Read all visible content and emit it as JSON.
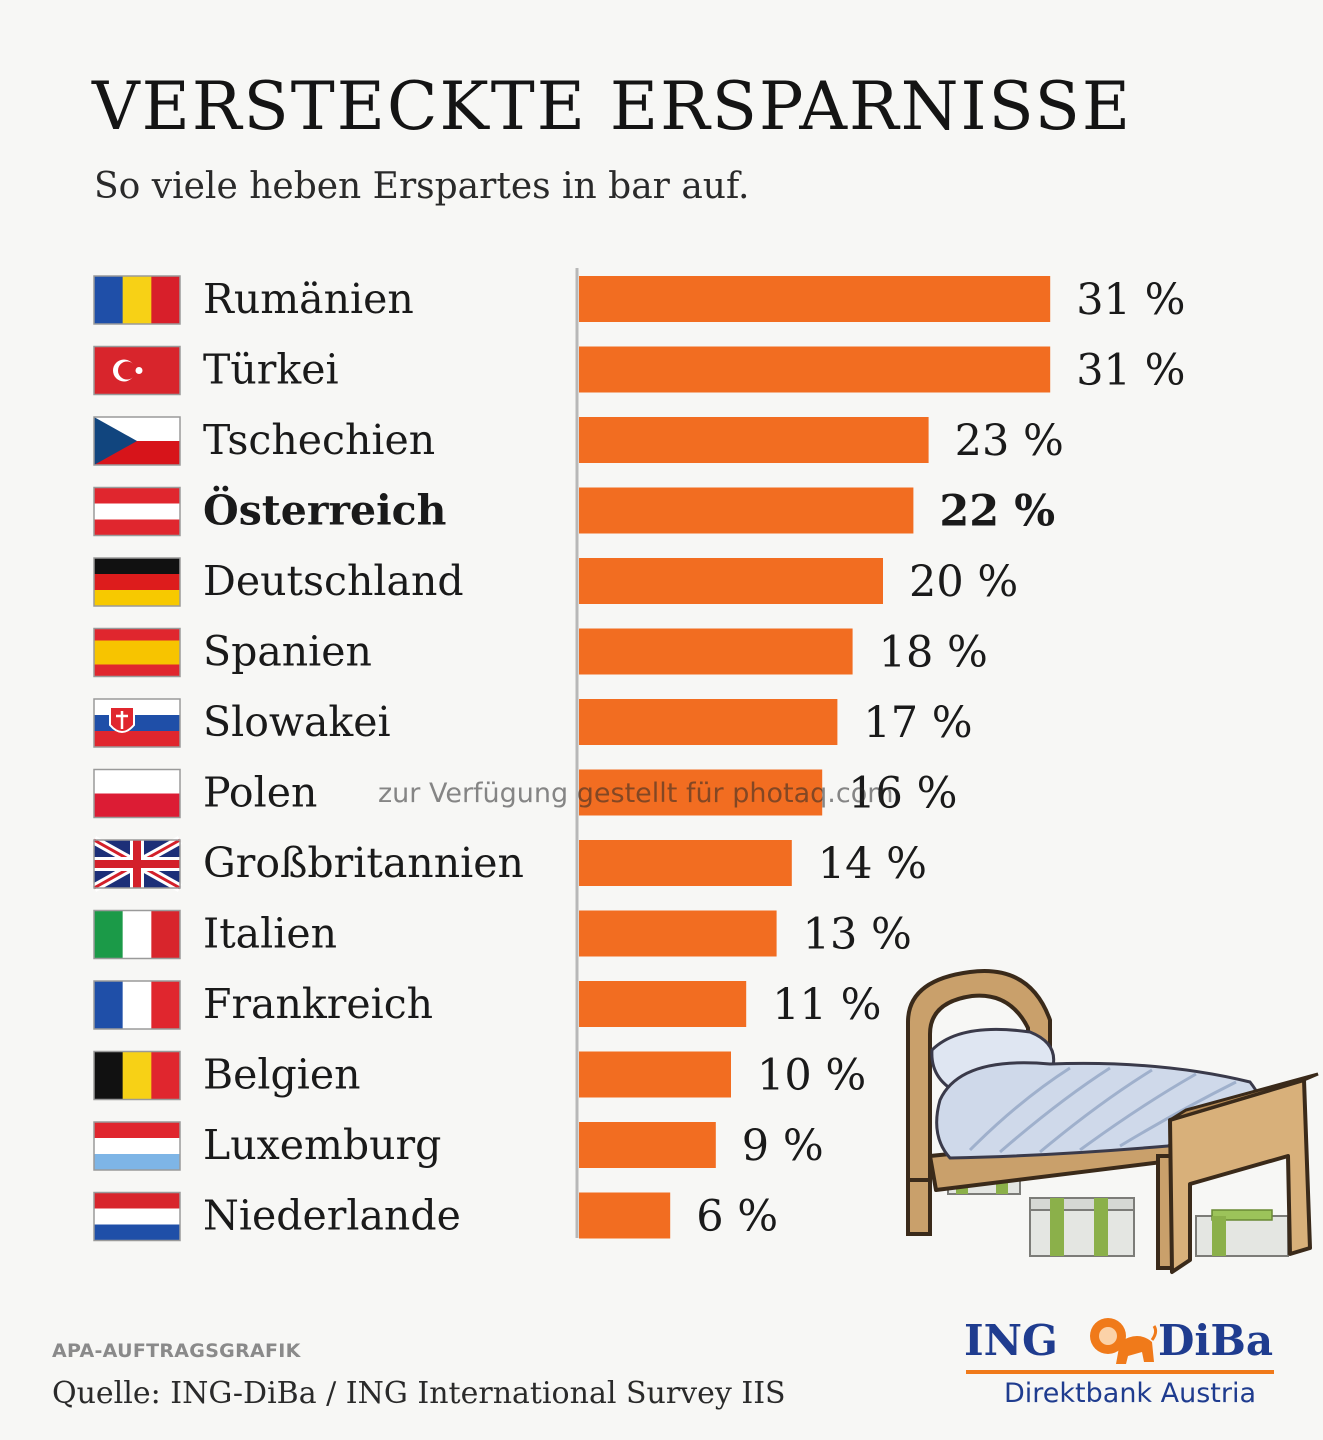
{
  "title": "VERSTECKTE ERSPARNISSE",
  "subtitle": "So viele heben Erspartes in bar auf.",
  "watermark": "zur Verfügung gestellt für photaq.com",
  "footer": {
    "credit": "APA-AUFTRAGSGRAFIK",
    "source": "Quelle: ING-DiBa / ING International Survey IIS"
  },
  "logo": {
    "brand_left": "ING",
    "brand_right": "DiBa",
    "tagline": "Direktbank Austria",
    "icon": "lion-icon"
  },
  "colors": {
    "bar": "#f26d21",
    "text": "#1a1a1a",
    "logo_blue": "#1f3c8f",
    "logo_orange": "#f07a1a"
  },
  "chart_data": {
    "type": "bar",
    "orientation": "horizontal",
    "title": "VERSTECKTE ERSPARNISSE",
    "subtitle": "So viele heben Erspartes in bar auf.",
    "unit": "%",
    "xlim": [
      0,
      31
    ],
    "grid": false,
    "highlight": "Österreich",
    "categories": [
      "Rumänien",
      "Türkei",
      "Tschechien",
      "Österreich",
      "Deutschland",
      "Spanien",
      "Slowakei",
      "Polen",
      "Großbritannien",
      "Italien",
      "Frankreich",
      "Belgien",
      "Luxemburg",
      "Niederlande"
    ],
    "values": [
      31,
      31,
      23,
      22,
      20,
      18,
      17,
      16,
      14,
      13,
      11,
      10,
      9,
      6
    ],
    "labels": [
      "31 %",
      "31 %",
      "23 %",
      "22 %",
      "20 %",
      "18 %",
      "17 %",
      "16 %",
      "14 %",
      "13 %",
      "11 %",
      "10 %",
      "9 %",
      "6 %"
    ],
    "flags": [
      "romania-flag-icon",
      "turkey-flag-icon",
      "czech-flag-icon",
      "austria-flag-icon",
      "germany-flag-icon",
      "spain-flag-icon",
      "slovakia-flag-icon",
      "poland-flag-icon",
      "uk-flag-icon",
      "italy-flag-icon",
      "france-flag-icon",
      "belgium-flag-icon",
      "luxembourg-flag-icon",
      "netherlands-flag-icon"
    ]
  }
}
